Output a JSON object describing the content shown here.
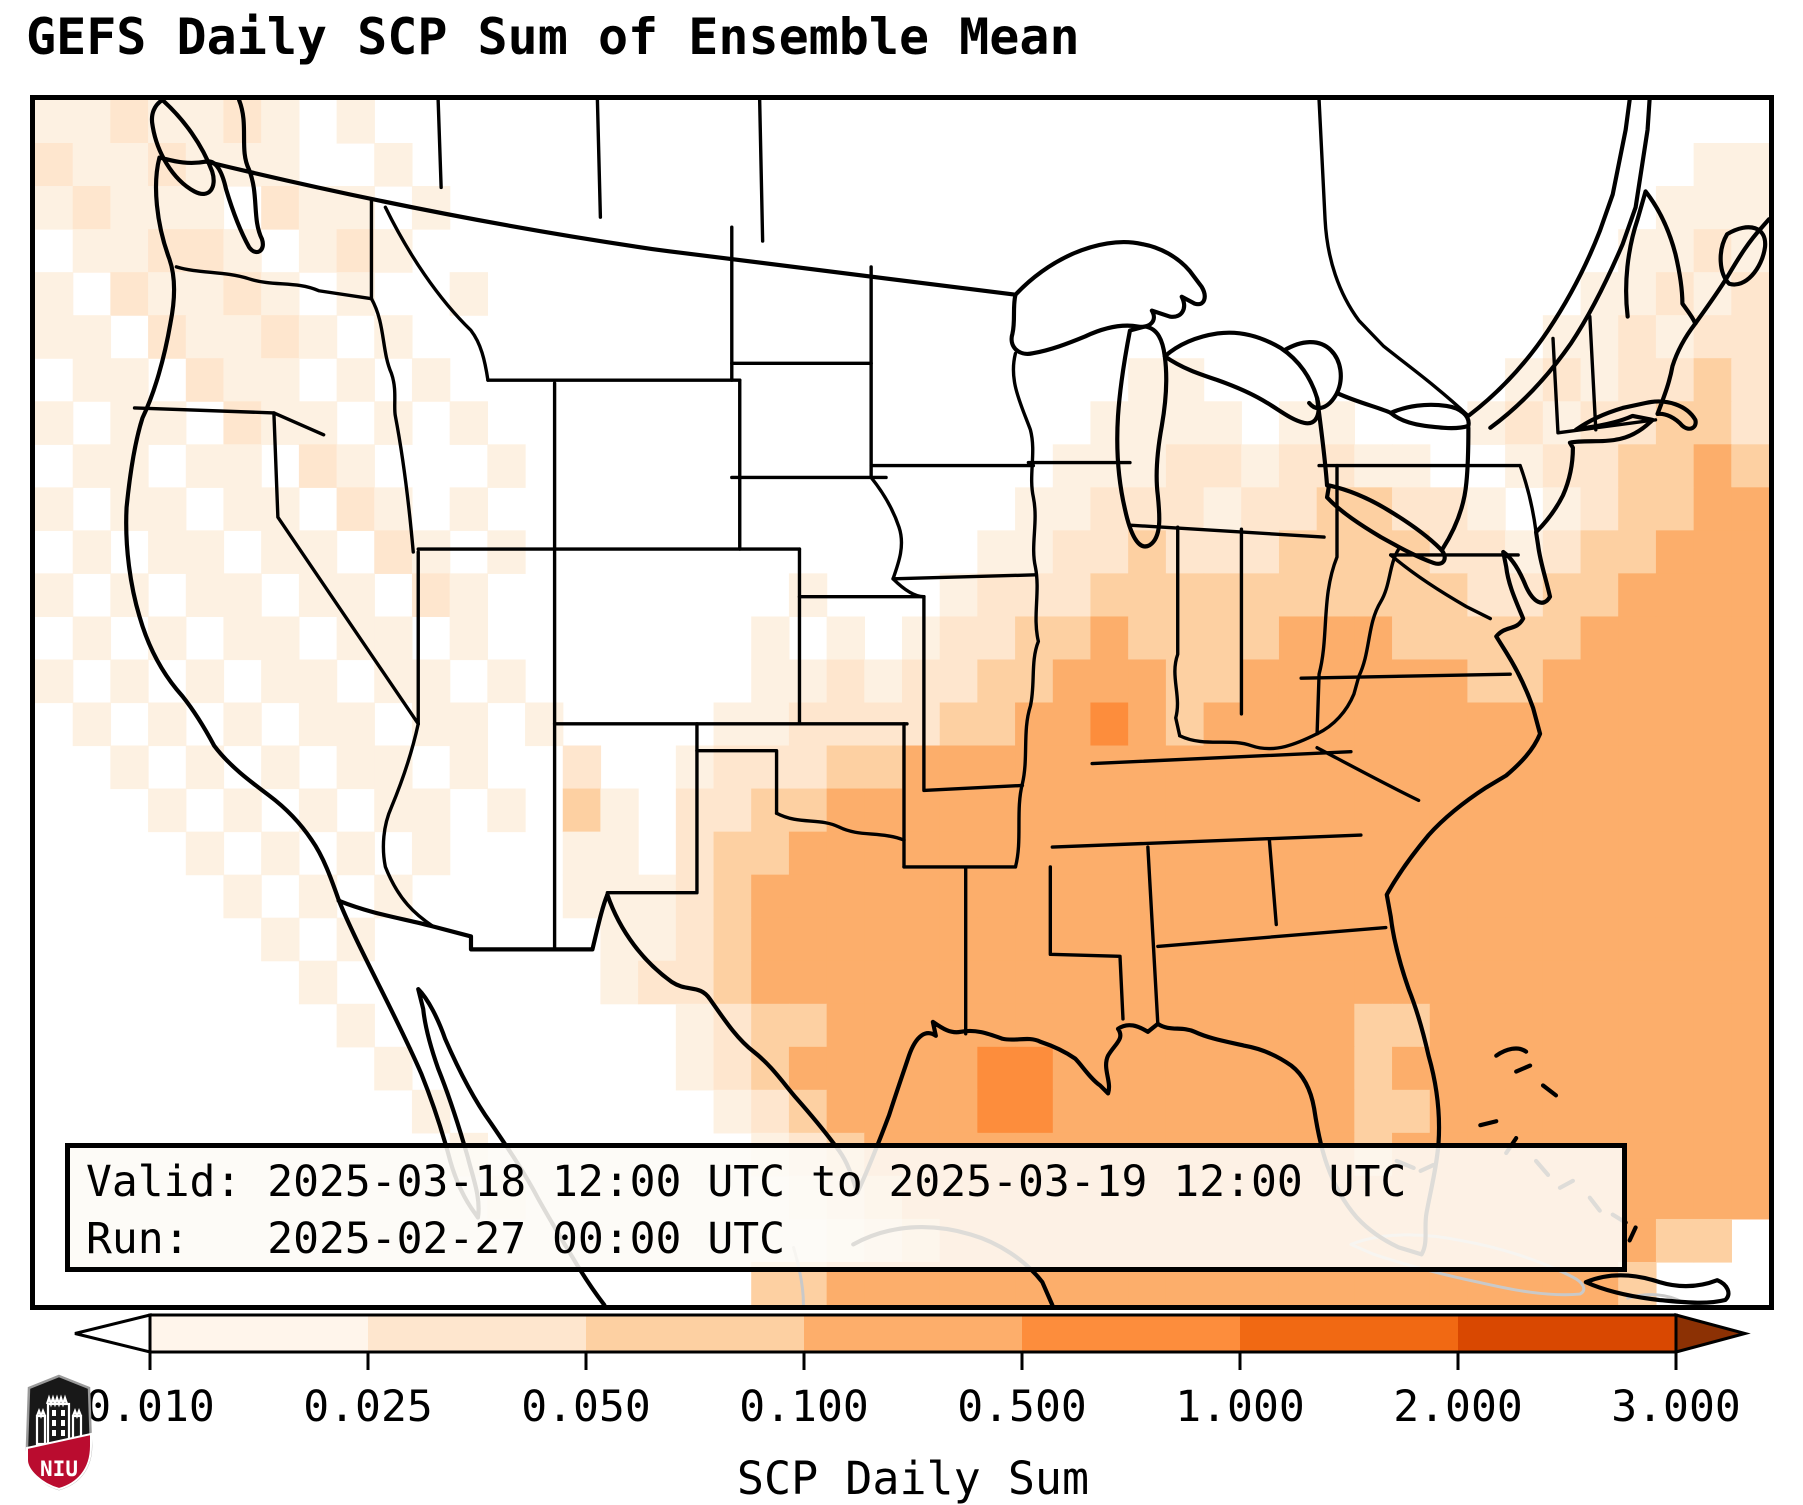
{
  "title": "GEFS Daily SCP Sum of Ensemble Mean",
  "info_box": {
    "line1": "Valid: 2025-03-18 12:00 UTC to 2025-03-19 12:00 UTC",
    "line2": "Run:   2025-02-27 00:00 UTC"
  },
  "colorbar": {
    "label": "SCP Daily Sum",
    "ticks": [
      "0.010",
      "0.025",
      "0.050",
      "0.100",
      "0.500",
      "1.000",
      "2.000",
      "3.000"
    ],
    "segment_colors": [
      "#fff5eb",
      "#fee6ce",
      "#fdd0a2",
      "#fdae6b",
      "#fd8d3c",
      "#f16913",
      "#d94801"
    ],
    "under_color": "#ffffff",
    "over_color": "#8c3104",
    "outline_color": "#000000"
  },
  "logo": {
    "text": "NIU",
    "shield_color": "#181818",
    "band_color": "#ba0c2f"
  },
  "map": {
    "background": "#ffffff",
    "border_color": "#000000",
    "state_line_color": "#000000",
    "foreign_line_color": "#c9c9c9",
    "palette": {
      "1": "#fdf1e2",
      "2": "#fee6ce",
      "3": "#fdd0a2",
      "4": "#fcae6b",
      "5": "#fd8d3c",
      "6": "#f16913"
    },
    "grid_cols": 46,
    "grid_rows": 28,
    "rows": [
      "1121121010000000000000000000000000000000000000",
      "2112111001000000000000000000000000000000000011",
      "1211102110100000000000000000000000000000000111",
      "0112210121000000000000000000000000000000001121",
      "1021121010010000000000000000000000000000011212",
      "1102112101000000000000000000000000000000112122",
      "0110211010100000000000000000011000000001212232",
      "1011021101010000000000000000111101100012122332",
      "0110110210001000000000000001112212211001223343",
      "1011011021010000000000000011222122332210123344",
      "0101101102101000000000000112232223333221233444",
      "1010110110210000000010001222333333333322334444",
      "0101011011010000000101012233433334443333344444",
      "1010101101101000000112122334443344444433444444",
      "0101010110110100001122223344543444444444444444",
      "0010101011010020012223344444444444444444444444",
      "0001010101101031022334444444444444444444444444",
      "0000101010100011023344444444444444444444444444",
      "0000010101000011123444444444444444444444444444",
      "0000001010000001123444444444444444444444444444",
      "0000000100000001223444444444444444444444444444",
      "0000000010000000012334444444444444433444444444",
      "0000000001000000012344444554444444434444444444",
      "0000000000100000001234444554444444433444444444",
      "0000000000010000000123444444444444434444444444",
      "0000000000001000000012344444444444444444444444",
      "0000000000000000000001234444444444444444444330",
      "0000000000000000000334444444444444444444443000"
    ]
  }
}
